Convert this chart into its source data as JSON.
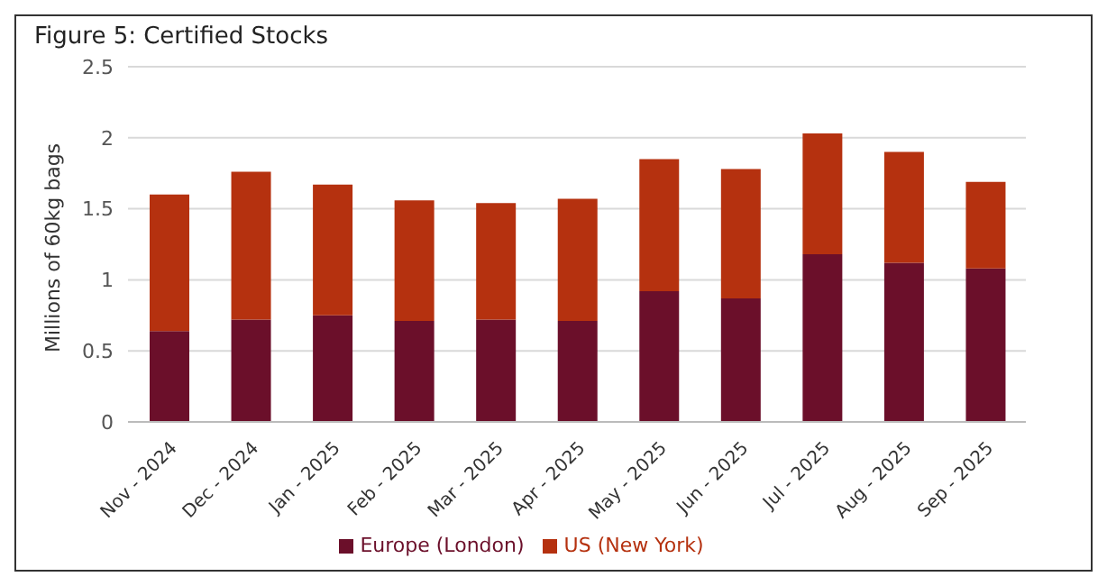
{
  "chart_data": {
    "type": "bar",
    "title": "Figure 5: Certified Stocks",
    "ylabel": "Millions of 60kg bags",
    "categories": [
      "Nov - 2024",
      "Dec - 2024",
      "Jan - 2025",
      "Feb - 2025",
      "Mar - 2025",
      "Apr - 2025",
      "May - 2025",
      "Jun - 2025",
      "Jul - 2025",
      "Aug - 2025",
      "Sep - 2025"
    ],
    "series": [
      {
        "name": "Europe (London)",
        "color": "#6b0f2a",
        "values": [
          0.64,
          0.72,
          0.75,
          0.71,
          0.72,
          0.71,
          0.92,
          0.87,
          1.18,
          1.12,
          1.08
        ]
      },
      {
        "name": "US (New York)",
        "color": "#b5310f",
        "values": [
          0.96,
          1.04,
          0.92,
          0.85,
          0.82,
          0.86,
          0.93,
          0.91,
          0.85,
          0.78,
          0.61
        ]
      }
    ],
    "stacked": true,
    "ylim": [
      0,
      2.5
    ],
    "yticks": [
      0,
      0.5,
      1,
      1.5,
      2,
      2.5
    ],
    "grid": "y",
    "legend": "bottom"
  }
}
